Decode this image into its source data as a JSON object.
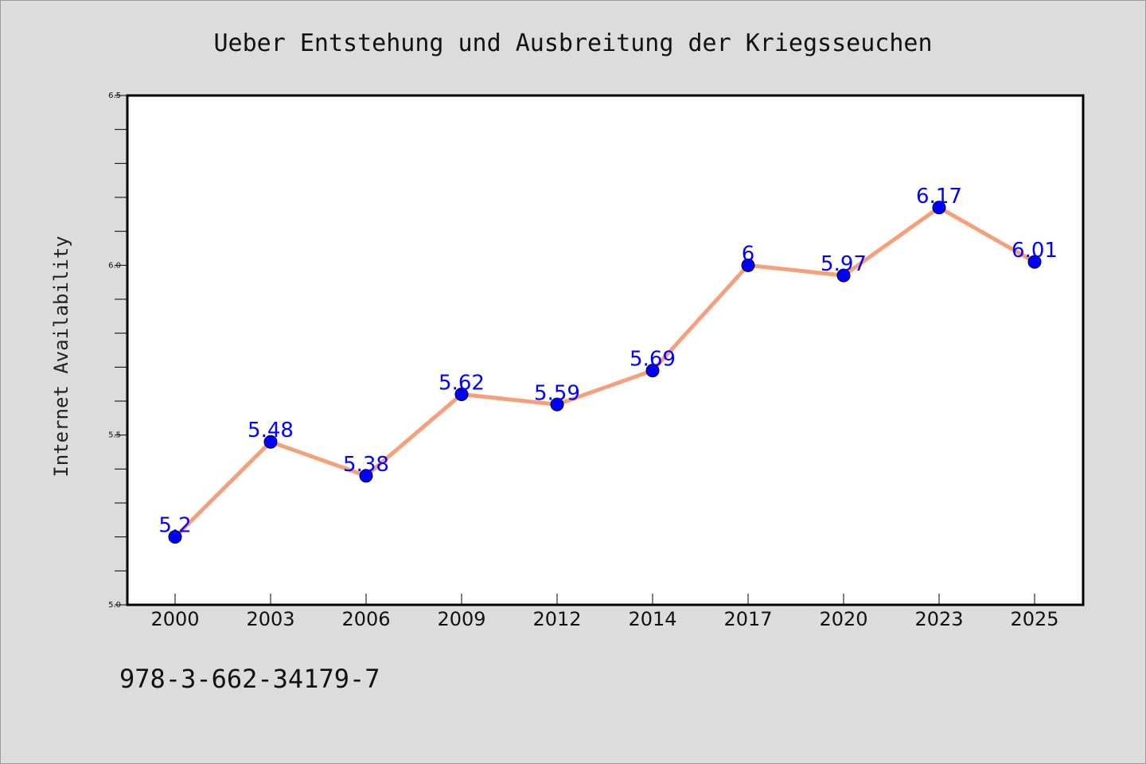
{
  "chart_data": {
    "type": "line",
    "title": "Ueber Entstehung und Ausbreitung der Kriegsseuchen",
    "xlabel": "",
    "ylabel": "Internet Availability",
    "categories": [
      "2000",
      "2003",
      "2006",
      "2009",
      "2012",
      "2014",
      "2017",
      "2020",
      "2023",
      "2025"
    ],
    "series": [
      {
        "values": [
          5.2,
          5.48,
          5.38,
          5.62,
          5.59,
          5.69,
          6.0,
          5.97,
          6.17,
          6.01
        ],
        "data_labels": [
          "5.2",
          "5.48",
          "5.38",
          "5.62",
          "5.59",
          "5.69",
          "6",
          "5.97",
          "6.17",
          "6.01"
        ]
      }
    ],
    "ylim": [
      5.0,
      6.5
    ],
    "y_ticks": [
      "5.0",
      "5.5",
      "6.0",
      "6.5"
    ],
    "grid": false,
    "colors": {
      "line": "#f4a07a",
      "marker": "#0000ff",
      "data_label": "#0000ff",
      "background": "#dcdcdc",
      "plot_bg": "#ffffff"
    }
  },
  "footer": {
    "isbn": "978-3-662-34179-7"
  }
}
